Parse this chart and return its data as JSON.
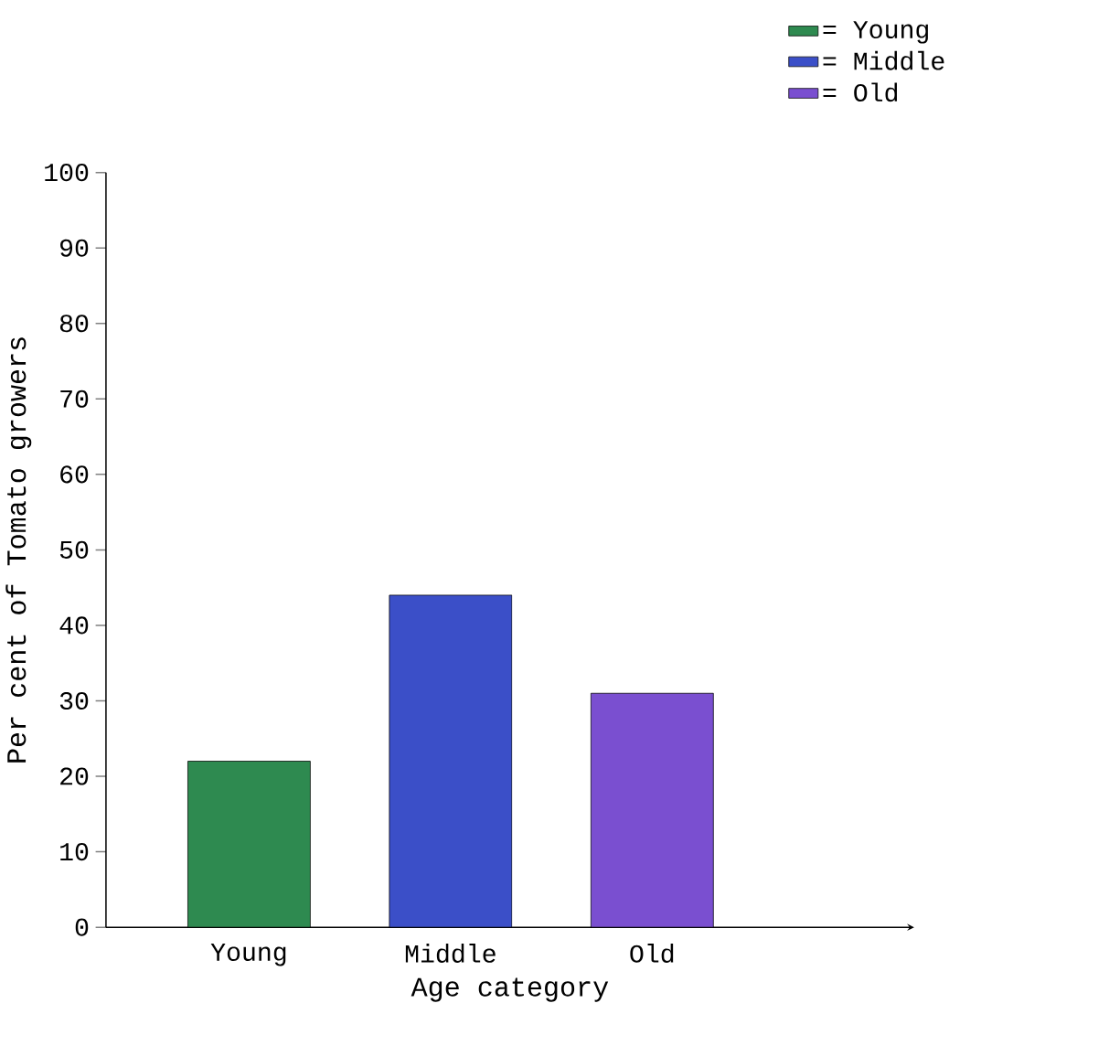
{
  "chart_data": {
    "type": "bar",
    "xlabel": "Age category",
    "ylabel": "Per cent of Tomato growers",
    "categories": [
      "Young",
      "Middle",
      "Old"
    ],
    "series": [
      {
        "name": "= Young",
        "color": "#2e8a50",
        "values": [
          22,
          null,
          null
        ]
      },
      {
        "name": "= Middle",
        "color": "#3b4fc8",
        "values": [
          null,
          44,
          null
        ]
      },
      {
        "name": "= Old",
        "color": "#7a4fd0",
        "values": [
          null,
          null,
          31
        ]
      }
    ],
    "ylim": [
      0,
      100
    ],
    "yticks": [
      0,
      10,
      20,
      30,
      40,
      50,
      60,
      70,
      80,
      90,
      100
    ],
    "grid": false,
    "legend": "top right"
  }
}
